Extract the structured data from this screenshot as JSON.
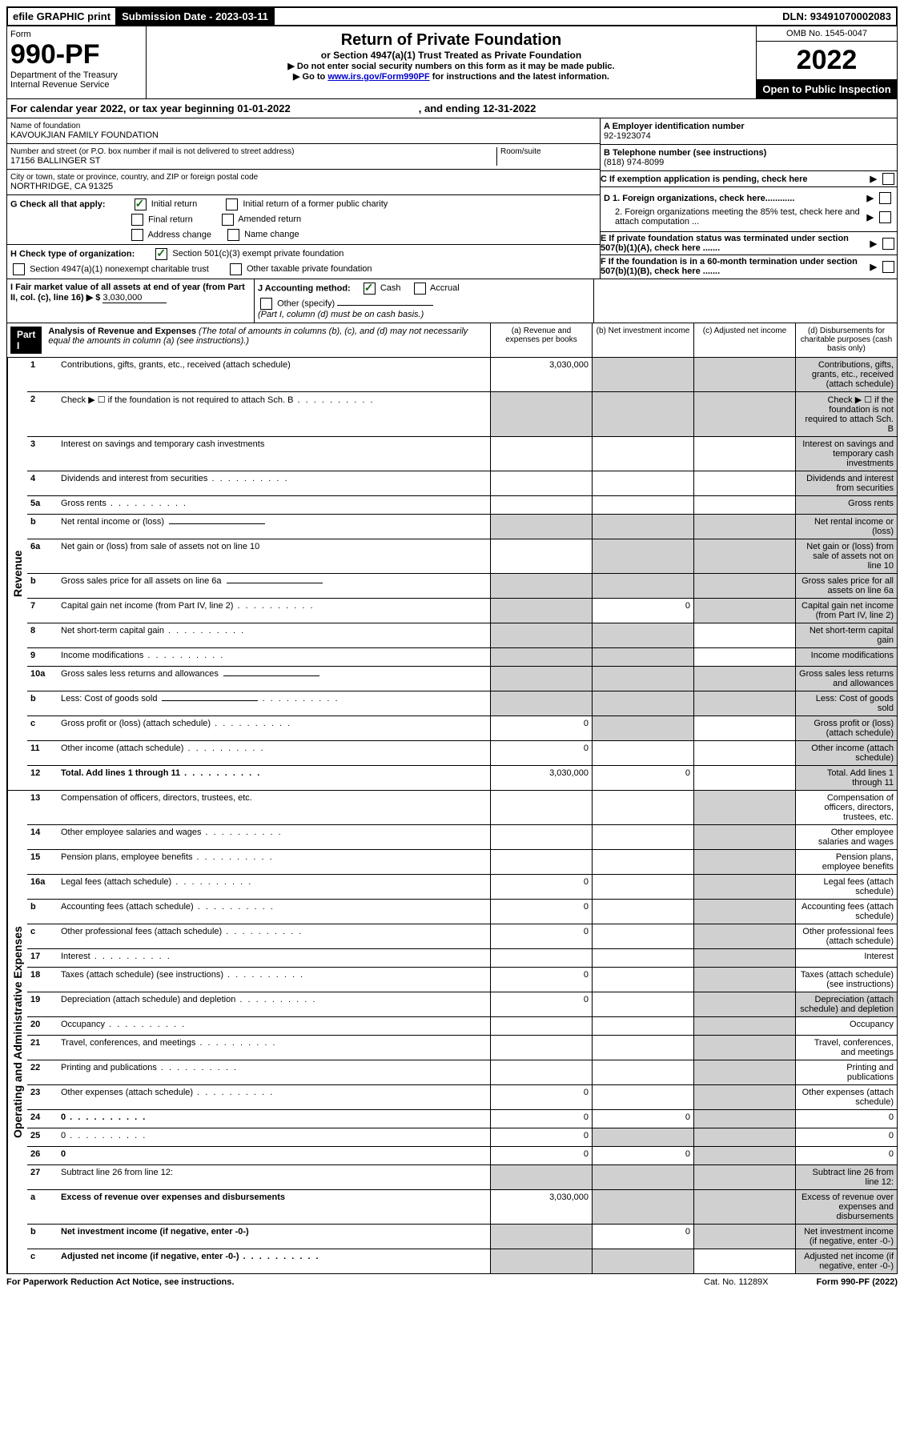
{
  "top": {
    "efile": "efile GRAPHIC print",
    "sub_label": "Submission Date - 2023-03-11",
    "dln": "DLN: 93491070002083"
  },
  "header": {
    "form_label": "Form",
    "form_no": "990-PF",
    "dept": "Department of the Treasury",
    "irs": "Internal Revenue Service",
    "title": "Return of Private Foundation",
    "subtitle": "or Section 4947(a)(1) Trust Treated as Private Foundation",
    "note1": "▶ Do not enter social security numbers on this form as it may be made public.",
    "note2_pre": "▶ Go to ",
    "note2_link": "www.irs.gov/Form990PF",
    "note2_post": " for instructions and the latest information.",
    "omb": "OMB No. 1545-0047",
    "year": "2022",
    "open": "Open to Public Inspection"
  },
  "calendar": {
    "text": "For calendar year 2022, or tax year beginning 01-01-2022",
    "ending": ", and ending 12-31-2022"
  },
  "entity": {
    "name_label": "Name of foundation",
    "name": "KAVOUKJIAN FAMILY FOUNDATION",
    "addr_label": "Number and street (or P.O. box number if mail is not delivered to street address)",
    "addr": "17156 BALLINGER ST",
    "room_label": "Room/suite",
    "city_label": "City or town, state or province, country, and ZIP or foreign postal code",
    "city": "NORTHRIDGE, CA  91325",
    "ein_label": "A Employer identification number",
    "ein": "92-1923074",
    "phone_label": "B Telephone number (see instructions)",
    "phone": "(818) 974-8099",
    "c_label": "C If exemption application is pending, check here",
    "d1": "D 1. Foreign organizations, check here............",
    "d2": "2. Foreign organizations meeting the 85% test, check here and attach computation ...",
    "e": "E  If private foundation status was terminated under section 507(b)(1)(A), check here .......",
    "f": "F  If the foundation is in a 60-month termination under section 507(b)(1)(B), check here .......",
    "g_label": "G Check all that apply:",
    "g_opts": [
      "Initial return",
      "Initial return of a former public charity",
      "Final return",
      "Amended return",
      "Address change",
      "Name change"
    ],
    "h_label": "H Check type of organization:",
    "h_opts": [
      "Section 501(c)(3) exempt private foundation",
      "Section 4947(a)(1) nonexempt charitable trust",
      "Other taxable private foundation"
    ],
    "i_label": "I Fair market value of all assets at end of year (from Part II, col. (c), line 16) ▶ $",
    "i_val": "3,030,000",
    "j_label": "J Accounting method:",
    "j_opts": [
      "Cash",
      "Accrual",
      "Other (specify)"
    ],
    "j_note": "(Part I, column (d) must be on cash basis.)"
  },
  "part1": {
    "label": "Part I",
    "title": "Analysis of Revenue and Expenses",
    "title_note": " (The total of amounts in columns (b), (c), and (d) may not necessarily equal the amounts in column (a) (see instructions).)",
    "cols": [
      "(a)   Revenue and expenses per books",
      "(b)   Net investment income",
      "(c)   Adjusted net income",
      "(d)   Disbursements for charitable purposes (cash basis only)"
    ]
  },
  "sections": [
    {
      "label": "Revenue",
      "rows": [
        {
          "n": "1",
          "d": "Contributions, gifts, grants, etc., received (attach schedule)",
          "a": "3,030,000",
          "grey": [
            "b",
            "c",
            "d"
          ]
        },
        {
          "n": "2",
          "d": "Check ▶ ☐ if the foundation is not required to attach Sch. B",
          "dots": true,
          "grey": [
            "a",
            "b",
            "c",
            "d"
          ]
        },
        {
          "n": "3",
          "d": "Interest on savings and temporary cash investments",
          "grey": [
            "d"
          ]
        },
        {
          "n": "4",
          "d": "Dividends and interest from securities",
          "dots": true,
          "grey": [
            "d"
          ]
        },
        {
          "n": "5a",
          "d": "Gross rents",
          "dots": true,
          "grey": [
            "d"
          ]
        },
        {
          "n": "b",
          "d": "Net rental income or (loss)",
          "input": true,
          "grey": [
            "a",
            "b",
            "c",
            "d"
          ]
        },
        {
          "n": "6a",
          "d": "Net gain or (loss) from sale of assets not on line 10",
          "grey": [
            "b",
            "c",
            "d"
          ]
        },
        {
          "n": "b",
          "d": "Gross sales price for all assets on line 6a",
          "input": true,
          "grey": [
            "a",
            "b",
            "c",
            "d"
          ]
        },
        {
          "n": "7",
          "d": "Capital gain net income (from Part IV, line 2)",
          "dots": true,
          "b": "0",
          "grey": [
            "a",
            "c",
            "d"
          ]
        },
        {
          "n": "8",
          "d": "Net short-term capital gain",
          "dots": true,
          "grey": [
            "a",
            "b",
            "d"
          ]
        },
        {
          "n": "9",
          "d": "Income modifications",
          "dots": true,
          "grey": [
            "a",
            "b",
            "d"
          ]
        },
        {
          "n": "10a",
          "d": "Gross sales less returns and allowances",
          "input": true,
          "grey": [
            "a",
            "b",
            "c",
            "d"
          ]
        },
        {
          "n": "b",
          "d": "Less: Cost of goods sold",
          "dots": true,
          "input": true,
          "grey": [
            "a",
            "b",
            "c",
            "d"
          ]
        },
        {
          "n": "c",
          "d": "Gross profit or (loss) (attach schedule)",
          "dots": true,
          "a": "0",
          "grey": [
            "b",
            "d"
          ]
        },
        {
          "n": "11",
          "d": "Other income (attach schedule)",
          "dots": true,
          "a": "0",
          "grey": [
            "d"
          ]
        },
        {
          "n": "12",
          "d": "Total. Add lines 1 through 11",
          "dots": true,
          "bold": true,
          "a": "3,030,000",
          "b": "0",
          "grey": [
            "d"
          ]
        }
      ]
    },
    {
      "label": "Operating and Administrative Expenses",
      "rows": [
        {
          "n": "13",
          "d": "Compensation of officers, directors, trustees, etc.",
          "grey": [
            "c"
          ]
        },
        {
          "n": "14",
          "d": "Other employee salaries and wages",
          "dots": true,
          "grey": [
            "c"
          ]
        },
        {
          "n": "15",
          "d": "Pension plans, employee benefits",
          "dots": true,
          "grey": [
            "c"
          ]
        },
        {
          "n": "16a",
          "d": "Legal fees (attach schedule)",
          "dots": true,
          "a": "0",
          "grey": [
            "c"
          ]
        },
        {
          "n": "b",
          "d": "Accounting fees (attach schedule)",
          "dots": true,
          "a": "0",
          "grey": [
            "c"
          ]
        },
        {
          "n": "c",
          "d": "Other professional fees (attach schedule)",
          "dots": true,
          "a": "0",
          "grey": [
            "c"
          ]
        },
        {
          "n": "17",
          "d": "Interest",
          "dots": true,
          "grey": [
            "c"
          ]
        },
        {
          "n": "18",
          "d": "Taxes (attach schedule) (see instructions)",
          "dots": true,
          "a": "0",
          "grey": [
            "c"
          ]
        },
        {
          "n": "19",
          "d": "Depreciation (attach schedule) and depletion",
          "dots": true,
          "a": "0",
          "grey": [
            "c",
            "d"
          ]
        },
        {
          "n": "20",
          "d": "Occupancy",
          "dots": true,
          "grey": [
            "c"
          ]
        },
        {
          "n": "21",
          "d": "Travel, conferences, and meetings",
          "dots": true,
          "grey": [
            "c"
          ]
        },
        {
          "n": "22",
          "d": "Printing and publications",
          "dots": true,
          "grey": [
            "c"
          ]
        },
        {
          "n": "23",
          "d": "Other expenses (attach schedule)",
          "dots": true,
          "a": "0",
          "grey": [
            "c"
          ]
        },
        {
          "n": "24",
          "d": "0",
          "dots": true,
          "bold": true,
          "a": "0",
          "b": "0",
          "grey": [
            "c"
          ]
        },
        {
          "n": "25",
          "d": "0",
          "dots": true,
          "a": "0",
          "grey": [
            "b",
            "c"
          ]
        },
        {
          "n": "26",
          "d": "0",
          "bold": true,
          "a": "0",
          "b": "0",
          "grey": [
            "c"
          ]
        },
        {
          "n": "27",
          "d": "Subtract line 26 from line 12:",
          "grey": [
            "a",
            "b",
            "c",
            "d"
          ]
        },
        {
          "n": "a",
          "d": "Excess of revenue over expenses and disbursements",
          "bold": true,
          "a": "3,030,000",
          "grey": [
            "b",
            "c",
            "d"
          ]
        },
        {
          "n": "b",
          "d": "Net investment income (if negative, enter -0-)",
          "bold": true,
          "b": "0",
          "grey": [
            "a",
            "c",
            "d"
          ]
        },
        {
          "n": "c",
          "d": "Adjusted net income (if negative, enter -0-)",
          "bold": true,
          "dots": true,
          "grey": [
            "a",
            "b",
            "d"
          ]
        }
      ]
    }
  ],
  "footer": {
    "left": "For Paperwork Reduction Act Notice, see instructions.",
    "mid": "Cat. No. 11289X",
    "right": "Form 990-PF (2022)"
  }
}
